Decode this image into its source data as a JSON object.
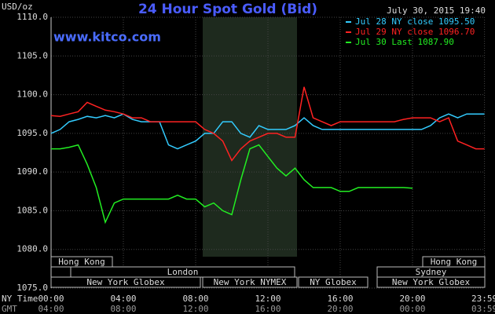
{
  "chart_data": {
    "type": "line",
    "title": "24 Hour Spot Gold (Bid)",
    "source": "www.kitco.com",
    "timestamp": "July 30, 2015 19:40",
    "y_label": "USD/oz",
    "x_label": "NY Time",
    "x2_label": "GMT",
    "x": [
      "00:00",
      "00:30",
      "01:00",
      "01:30",
      "02:00",
      "02:30",
      "03:00",
      "03:30",
      "04:00",
      "04:30",
      "05:00",
      "05:30",
      "06:00",
      "06:30",
      "07:00",
      "07:30",
      "08:00",
      "08:30",
      "09:00",
      "09:30",
      "10:00",
      "10:30",
      "11:00",
      "11:30",
      "12:00",
      "12:30",
      "13:00",
      "13:30",
      "14:00",
      "14:30",
      "15:00",
      "15:30",
      "16:00",
      "16:30",
      "17:00",
      "17:30",
      "18:00",
      "18:30",
      "19:00",
      "19:30",
      "20:00",
      "20:30",
      "21:00",
      "21:30",
      "22:00",
      "22:30",
      "23:00",
      "23:30",
      "23:59"
    ],
    "series": [
      {
        "name": "Jul 28 NY close 1095.50",
        "color": "#33ccff",
        "values": [
          1095.0,
          1095.5,
          1096.5,
          1096.8,
          1097.2,
          1097.0,
          1097.3,
          1097.0,
          1097.5,
          1096.8,
          1096.5,
          1096.5,
          1096.5,
          1093.5,
          1093.0,
          1093.5,
          1094.0,
          1095.0,
          1095.0,
          1096.5,
          1096.5,
          1095.0,
          1094.5,
          1096.0,
          1095.5,
          1095.5,
          1095.5,
          1096.0,
          1097.0,
          1096.0,
          1095.5,
          1095.5,
          1095.5,
          1095.5,
          1095.5,
          1095.5,
          1095.5,
          1095.5,
          1095.5,
          1095.5,
          1095.5,
          1095.5,
          1096.0,
          1097.0,
          1097.5,
          1097.0,
          1097.5,
          1097.5,
          1097.5
        ]
      },
      {
        "name": "Jul 29 NY close 1096.70",
        "color": "#ff2222",
        "values": [
          1097.3,
          1097.2,
          1097.5,
          1097.8,
          1099.0,
          1098.5,
          1098.0,
          1097.8,
          1097.5,
          1097.0,
          1097.0,
          1096.5,
          1096.5,
          1096.5,
          1096.5,
          1096.5,
          1096.5,
          1095.5,
          1095.0,
          1094.0,
          1091.5,
          1093.0,
          1094.0,
          1094.5,
          1095.0,
          1095.0,
          1094.5,
          1094.5,
          1101.0,
          1097.0,
          1096.5,
          1096.0,
          1096.5,
          1096.5,
          1096.5,
          1096.5,
          1096.5,
          1096.5,
          1096.5,
          1096.8,
          1097.0,
          1097.0,
          1097.0,
          1096.5,
          1097.0,
          1094.0,
          1093.5,
          1093.0,
          1093.0
        ]
      },
      {
        "name": "Jul 30 Last 1087.90",
        "color": "#22ee22",
        "values": [
          1093.0,
          1093.0,
          1093.2,
          1093.5,
          1091.0,
          1088.0,
          1083.5,
          1086.0,
          1086.5,
          1086.5,
          1086.5,
          1086.5,
          1086.5,
          1086.5,
          1087.0,
          1086.5,
          1086.5,
          1085.5,
          1086.0,
          1085.0,
          1084.5,
          1089.0,
          1093.0,
          1093.5,
          1092.0,
          1090.5,
          1089.5,
          1090.5,
          1089.0,
          1088.0,
          1088.0,
          1088.0,
          1087.5,
          1087.5,
          1088.0,
          1088.0,
          1088.0,
          1088.0,
          1088.0,
          1088.0,
          1087.9,
          null,
          null,
          null,
          null,
          null,
          null,
          null,
          null
        ]
      }
    ],
    "ylim": [
      1075,
      1110
    ],
    "yticks": [
      {
        "value": 1075,
        "label": "1075.0"
      },
      {
        "value": 1080,
        "label": "1080.0"
      },
      {
        "value": 1085,
        "label": "1085.0"
      },
      {
        "value": 1090,
        "label": "1090.0"
      },
      {
        "value": 1095,
        "label": "1095.0"
      },
      {
        "value": 1100,
        "label": "1100.0"
      },
      {
        "value": 1105,
        "label": "1105.0"
      },
      {
        "value": 1110,
        "label": "1110.0"
      }
    ],
    "xticks": [
      "00:00",
      "04:00",
      "08:00",
      "12:00",
      "16:00",
      "20:00",
      "23:59"
    ],
    "x2ticks": [
      "04:00",
      "08:00",
      "12:00",
      "16:00",
      "20:00",
      "00:00",
      "03:59"
    ],
    "sessions": [
      "Hong Kong",
      "London",
      "New York Globex",
      "New York NYMEX",
      "NY Globex",
      "Hong Kong",
      "Sydney",
      "New York Globex"
    ],
    "grid": true
  }
}
